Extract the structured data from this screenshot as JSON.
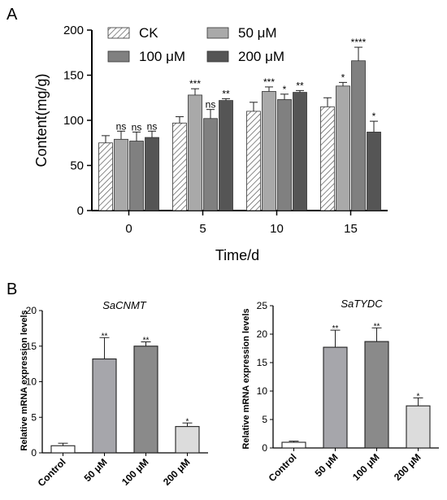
{
  "colors": {
    "CK": "hatched",
    "50 μM": "#a9a9a9",
    "100 μM": "#808080",
    "200 μM": "#555555",
    "Control": "#ffffff",
    "B 50 μM": "#a6a6ab",
    "B 100 μM": "#8a8a8a",
    "B 200 μM": "#dcdcdc"
  },
  "chart_data": [
    {
      "panel": "A",
      "type": "bar",
      "title": "",
      "xlabel": "Time/d",
      "ylabel": "Content(mg/g)",
      "ylim": [
        0,
        200
      ],
      "yticks": [
        0,
        50,
        100,
        150,
        200
      ],
      "categories": [
        "0",
        "5",
        "10",
        "15"
      ],
      "legend_position": "top",
      "series": [
        {
          "name": "CK",
          "values": [
            75,
            97,
            110,
            115
          ],
          "err": [
            8,
            7,
            10,
            10
          ],
          "sig": [
            "",
            "",
            "",
            ""
          ]
        },
        {
          "name": "50 μM",
          "values": [
            79,
            128,
            132,
            138
          ],
          "err": [
            9,
            7,
            5,
            4
          ],
          "sig": [
            "ns",
            "***",
            "***",
            "*"
          ]
        },
        {
          "name": "100 μM",
          "values": [
            77,
            102,
            123,
            166
          ],
          "err": [
            10,
            10,
            6,
            15
          ],
          "sig": [
            "ns",
            "ns",
            "*",
            "****"
          ]
        },
        {
          "name": "200 μM",
          "values": [
            81,
            122,
            131,
            87
          ],
          "err": [
            7,
            2,
            2,
            12
          ],
          "sig": [
            "ns",
            "**",
            "**",
            "*"
          ]
        }
      ]
    },
    {
      "panel": "B",
      "type": "bar",
      "title": "SaCNMT",
      "xlabel": "",
      "ylabel": "Relative mRNA expression levels",
      "ylim": [
        0,
        20
      ],
      "yticks": [
        0,
        5,
        10,
        15,
        20
      ],
      "categories": [
        "Control",
        "50 μM",
        "100 μM",
        "200 μM"
      ],
      "values": [
        1.0,
        13.2,
        15.0,
        3.7
      ],
      "err": [
        0.35,
        3.0,
        0.6,
        0.5
      ],
      "sig": [
        "",
        "**",
        "**",
        "*"
      ]
    },
    {
      "panel": "",
      "type": "bar",
      "title": "SaTYDC",
      "xlabel": "",
      "ylabel": "Relative mRNA expression levels",
      "ylim": [
        0,
        25
      ],
      "yticks": [
        0,
        5,
        10,
        15,
        20,
        25
      ],
      "categories": [
        "Control",
        "50 μM",
        "100 μM",
        "200 μM"
      ],
      "values": [
        1.0,
        17.7,
        18.7,
        7.4
      ],
      "err": [
        0.2,
        3.0,
        2.4,
        1.4
      ],
      "sig": [
        "",
        "**",
        "**",
        "*"
      ]
    }
  ]
}
